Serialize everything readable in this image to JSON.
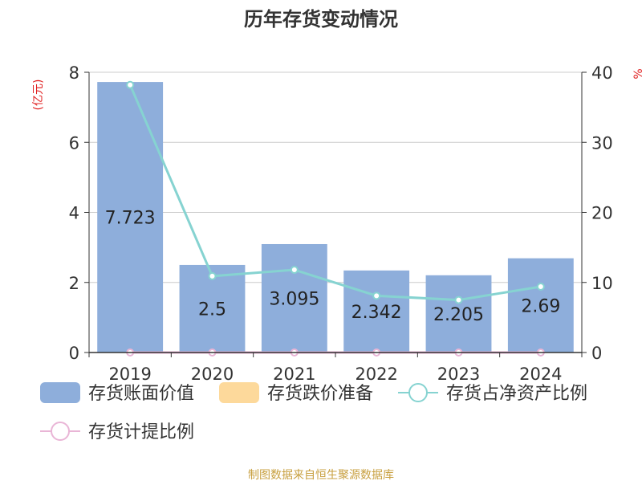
{
  "chart_data": {
    "type": "bar",
    "title": "历年存货变动情况",
    "categories": [
      "2019",
      "2020",
      "2021",
      "2022",
      "2023",
      "2024"
    ],
    "y_left": {
      "label": "(亿元)",
      "range": [
        0,
        8
      ],
      "ticks": [
        "0",
        "2",
        "4",
        "6",
        "8"
      ]
    },
    "y_right": {
      "label": "%",
      "range": [
        0,
        40
      ],
      "ticks": [
        "0",
        "10",
        "20",
        "30",
        "40"
      ]
    },
    "grid": true,
    "legend_position": "bottom",
    "series": [
      {
        "name": "存货账面价值",
        "kind": "bar",
        "axis": "left",
        "color": "#8eaedb",
        "values": [
          7.723,
          2.5,
          3.095,
          2.342,
          2.205,
          2.69
        ],
        "labels": [
          "7.723",
          "2.5",
          "3.095",
          "2.342",
          "2.205",
          "2.69"
        ]
      },
      {
        "name": "存货跌价准备",
        "kind": "bar",
        "axis": "left",
        "color": "#fdd99b",
        "values": [
          0,
          0,
          0,
          0,
          0,
          0
        ]
      },
      {
        "name": "存货占净资产比例",
        "kind": "line",
        "axis": "right",
        "color": "#86d3d1",
        "values": [
          38.2,
          10.9,
          11.8,
          8.1,
          7.5,
          9.4
        ]
      },
      {
        "name": "存货计提比例",
        "kind": "line",
        "axis": "right",
        "color": "#e9b5d6",
        "values": [
          0,
          0,
          0,
          0,
          0,
          0
        ]
      }
    ],
    "source_note": "制图数据来自恒生聚源数据库"
  }
}
